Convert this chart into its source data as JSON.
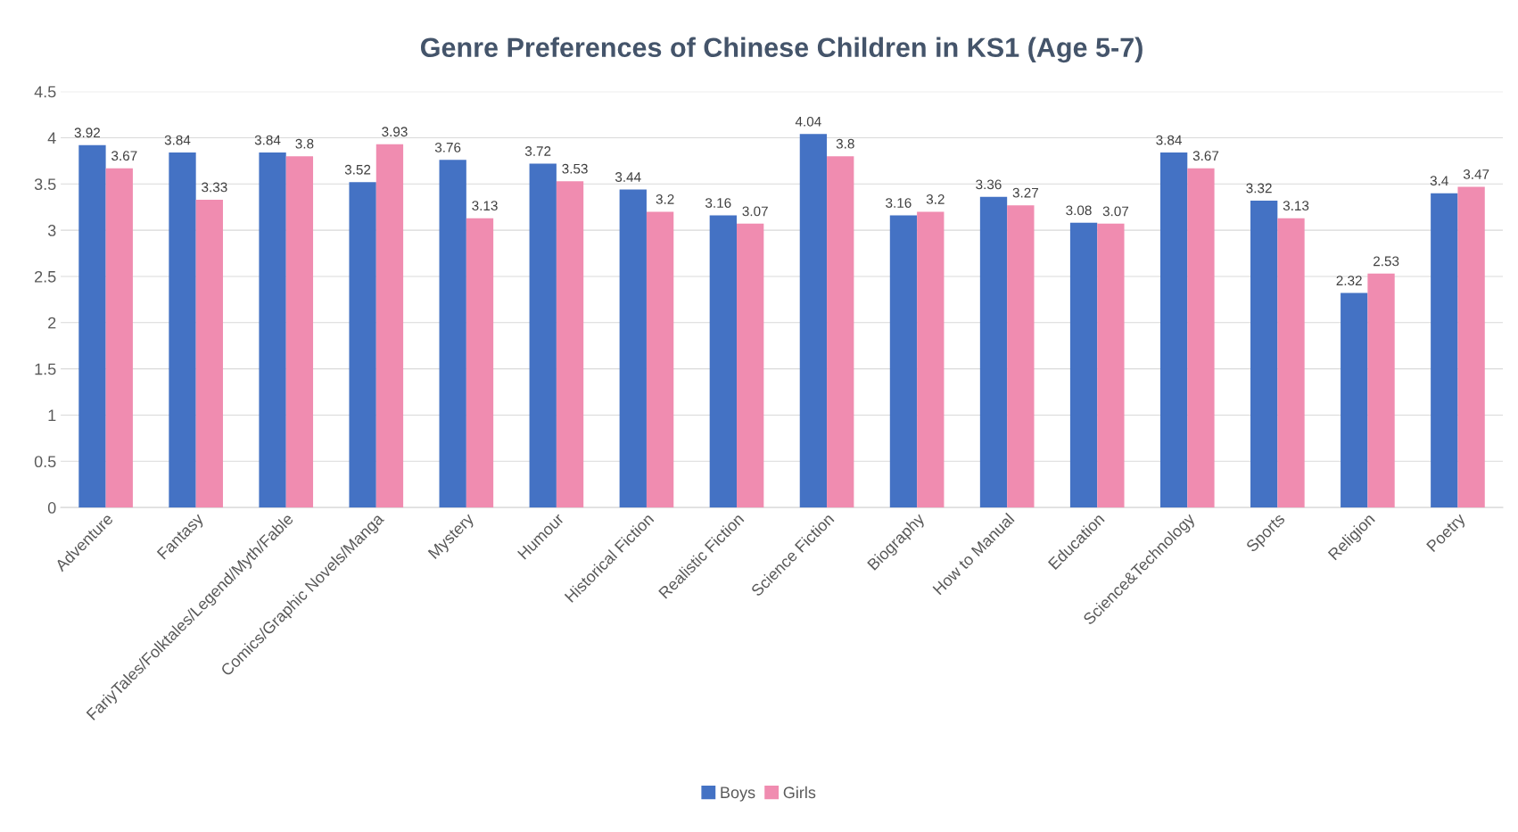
{
  "chart_data": {
    "type": "bar",
    "title": "Genre Preferences of Chinese Children in KS1 (Age 5-7)",
    "categories": [
      "Adventure",
      "Fantasy",
      "FariyTales/Folktales/Legend/Myth/Fable",
      "Comics/Graphic Novels/Manga",
      "Mystery",
      "Humour",
      "Historical Fiction",
      "Realistic Fiction",
      "Science Fiction",
      "Biography",
      "How to Manual",
      "Education",
      "Science&Technology",
      "Sports",
      "Religion",
      "Poetry"
    ],
    "series": [
      {
        "name": "Boys",
        "color": "#4472c4",
        "values": [
          3.92,
          3.84,
          3.84,
          3.52,
          3.76,
          3.72,
          3.44,
          3.16,
          4.04,
          3.16,
          3.36,
          3.08,
          3.84,
          3.32,
          2.32,
          3.4
        ]
      },
      {
        "name": "Girls",
        "color": "#f08cb0",
        "values": [
          3.67,
          3.33,
          3.8,
          3.93,
          3.13,
          3.53,
          3.2,
          3.07,
          3.8,
          3.2,
          3.27,
          3.07,
          3.67,
          3.13,
          2.53,
          3.47
        ]
      }
    ],
    "ylim": [
      0,
      4.5
    ],
    "yticks": [
      0,
      0.5,
      1,
      1.5,
      2,
      2.5,
      3,
      3.5,
      4,
      4.5
    ],
    "grid": "y",
    "legend": "bottom",
    "data_labels": true
  }
}
